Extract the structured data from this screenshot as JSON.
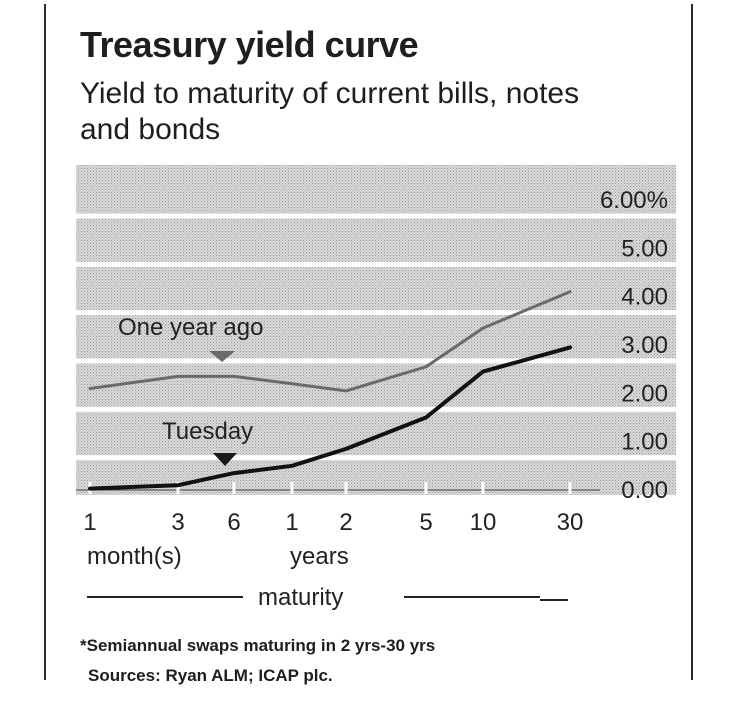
{
  "chart_data": {
    "type": "line",
    "title": "Treasury yield curve",
    "subtitle": "Yield to maturity of current bills, notes and bonds",
    "ylim": [
      0,
      6
    ],
    "y_ticks": [
      "6.00%",
      "5.00",
      "4.00",
      "3.00",
      "2.00",
      "1.00",
      "0.00"
    ],
    "y_tick_values": [
      6,
      5,
      4,
      3,
      2,
      1,
      0
    ],
    "x_ticks": [
      "1",
      "3",
      "6",
      "1",
      "2",
      "5",
      "10",
      "30"
    ],
    "x_group_labels": [
      "month(s)",
      "years"
    ],
    "xlabel": "maturity",
    "x": [
      "1 month",
      "3 months",
      "6 months",
      "1 year",
      "2 years",
      "5 years",
      "10 years",
      "30 years"
    ],
    "series": [
      {
        "name": "One year ago",
        "values": [
          2.1,
          2.35,
          2.35,
          2.2,
          2.05,
          2.55,
          3.35,
          4.1
        ],
        "color": "#6a6a6a"
      },
      {
        "name": "Tuesday",
        "values": [
          0.03,
          0.1,
          0.35,
          0.5,
          0.85,
          1.5,
          2.45,
          2.95
        ],
        "color": "#111111"
      }
    ],
    "footnote": "*Semiannual swaps maturing in 2 yrs-30 yrs",
    "sources": "Sources: Ryan ALM; ICAP plc."
  }
}
